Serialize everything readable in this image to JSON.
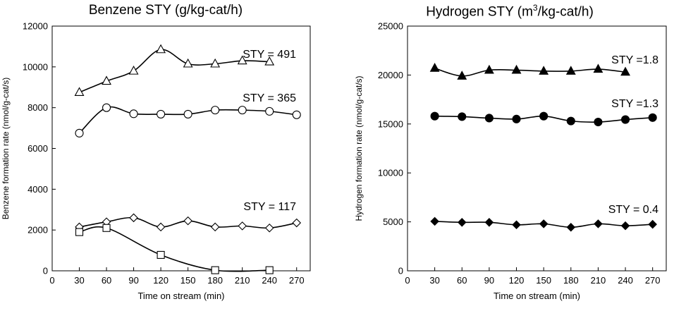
{
  "chart_data": [
    {
      "type": "line",
      "title": "Benzene STY (g/kg-cat/h)",
      "xlabel": "Time on stream (min)",
      "ylabel": "Benzene formation rate (nmol/g-cat/s)",
      "xlim": [
        0,
        285
      ],
      "ylim": [
        0,
        12000
      ],
      "x_ticks": [
        0,
        30,
        60,
        90,
        120,
        150,
        180,
        210,
        240,
        270
      ],
      "y_ticks": [
        0,
        2000,
        4000,
        6000,
        8000,
        10000,
        12000
      ],
      "grid": false,
      "series": [
        {
          "marker": "triangle-open",
          "label": "STY = 491",
          "x": [
            30,
            60,
            90,
            120,
            150,
            180,
            210,
            240
          ],
          "y": [
            8750,
            9300,
            9800,
            10850,
            10150,
            10150,
            10300,
            10250
          ]
        },
        {
          "marker": "circle-open",
          "label": "STY = 365",
          "x": [
            30,
            60,
            90,
            120,
            150,
            180,
            210,
            240,
            270
          ],
          "y": [
            6750,
            8000,
            7700,
            7680,
            7680,
            7880,
            7880,
            7820,
            7650
          ]
        },
        {
          "marker": "diamond-open",
          "label": "STY = 117",
          "x": [
            30,
            60,
            90,
            120,
            150,
            180,
            210,
            240,
            270
          ],
          "y": [
            2150,
            2400,
            2600,
            2150,
            2450,
            2150,
            2200,
            2100,
            2350
          ]
        },
        {
          "marker": "square-open",
          "label": "",
          "x": [
            30,
            60,
            120,
            180,
            240
          ],
          "y": [
            1900,
            2100,
            780,
            30,
            30
          ]
        }
      ]
    },
    {
      "type": "line",
      "title_main": "Hydrogen STY (m",
      "title_sup": "3",
      "title_tail": "/kg-cat/h)",
      "xlabel": "Time on stream (min)",
      "ylabel": "Hydrogen formation rate (nmol/g-cat/s)",
      "xlim": [
        0,
        285
      ],
      "ylim": [
        0,
        25000
      ],
      "x_ticks": [
        0,
        30,
        60,
        90,
        120,
        150,
        180,
        210,
        240,
        270
      ],
      "y_ticks": [
        0,
        5000,
        10000,
        15000,
        20000,
        25000
      ],
      "grid": false,
      "series": [
        {
          "marker": "triangle-filled",
          "label": "STY =1.8",
          "x": [
            30,
            60,
            90,
            120,
            150,
            180,
            210,
            240
          ],
          "y": [
            20700,
            19900,
            20500,
            20500,
            20400,
            20400,
            20600,
            20300
          ]
        },
        {
          "marker": "circle-filled",
          "label": "STY =1.3",
          "x": [
            30,
            60,
            90,
            120,
            150,
            180,
            210,
            240,
            270
          ],
          "y": [
            15800,
            15750,
            15600,
            15500,
            15800,
            15300,
            15200,
            15450,
            15650
          ]
        },
        {
          "marker": "diamond-filled",
          "label": "STY = 0.4",
          "x": [
            30,
            60,
            90,
            120,
            150,
            180,
            210,
            240,
            270
          ],
          "y": [
            5050,
            4950,
            4950,
            4700,
            4800,
            4450,
            4800,
            4600,
            4750
          ]
        }
      ]
    }
  ]
}
